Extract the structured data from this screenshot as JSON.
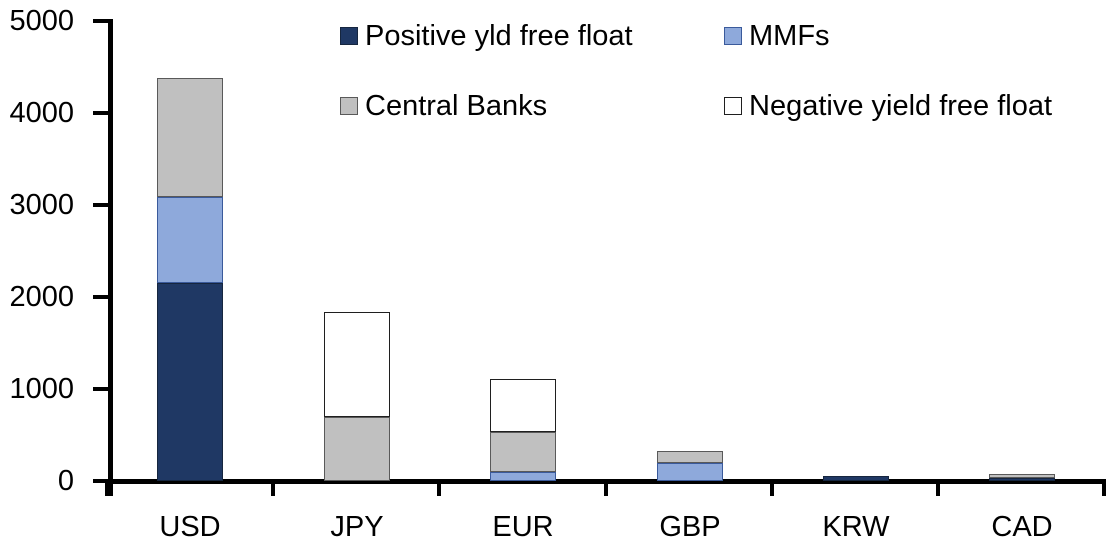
{
  "chart_data": {
    "type": "bar",
    "stacked": true,
    "title": "",
    "xlabel": "",
    "ylabel": "",
    "categories": [
      "USD",
      "JPY",
      "EUR",
      "GBP",
      "KRW",
      "CAD"
    ],
    "series": [
      {
        "name": "Positive yld free float",
        "color": "#1F3864",
        "border": "#16263F",
        "values": [
          2150,
          0,
          0,
          0,
          50,
          35
        ]
      },
      {
        "name": "MMFs",
        "color": "#8EA9DB",
        "border": "#3A5A9B",
        "values": [
          940,
          0,
          100,
          200,
          0,
          0
        ]
      },
      {
        "name": "Central Banks",
        "color": "#C0C0C0",
        "border": "#595959",
        "values": [
          1290,
          700,
          430,
          125,
          0,
          40
        ]
      },
      {
        "name": "Negative yield free float",
        "color": "#FFFFFF",
        "border": "#1F1F1F",
        "values": [
          0,
          1140,
          575,
          0,
          0,
          0
        ]
      }
    ],
    "totals": [
      4380,
      1840,
      1105,
      325,
      50,
      75
    ],
    "ylim": [
      0,
      5000
    ],
    "ytick_interval": 1000,
    "yticks": [
      "5000",
      "4000",
      "3000",
      "2000",
      "1000",
      "0"
    ],
    "grid": false,
    "legend_position": "top",
    "axis_color": "#000000",
    "background_color": "#FFFFFF"
  }
}
